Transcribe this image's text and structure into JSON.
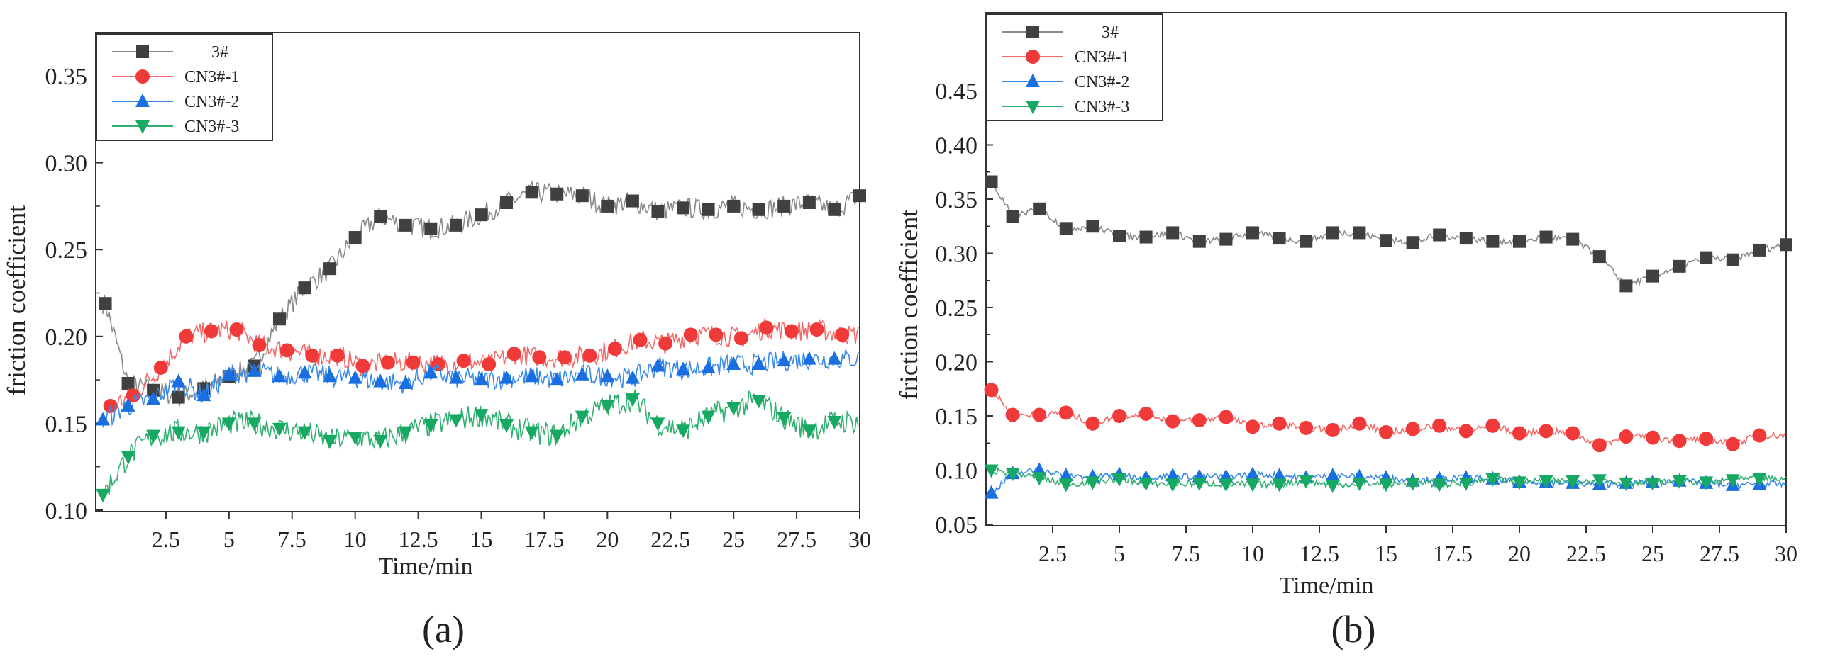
{
  "chart_data": [
    {
      "type": "line",
      "panel_label": "(a)",
      "xlabel": "Time/min",
      "ylabel": "friction coefficient",
      "xlim": [
        0,
        30
      ],
      "ylim": [
        0.1,
        0.36
      ],
      "xticks": [
        "2.5",
        "5",
        "7.5",
        "10",
        "12.5",
        "15",
        "17.5",
        "20",
        "22.5",
        "25",
        "27.5",
        "30"
      ],
      "yticks": [
        "0.10",
        "0.15",
        "0.20",
        "0.25",
        "0.30",
        "0.35"
      ],
      "legend_position": "top-left",
      "series": [
        {
          "name": "3#",
          "color": "#404040",
          "line_color": "#8a8a8a",
          "marker": "square",
          "x": [
            0.1,
            1,
            2,
            3,
            4,
            5,
            6,
            7,
            8,
            9,
            10,
            11,
            12,
            13,
            14,
            15,
            16,
            17,
            18,
            19,
            20,
            21,
            22,
            23,
            24,
            25,
            26,
            27,
            28,
            29,
            30
          ],
          "y": [
            0.219,
            0.173,
            0.169,
            0.165,
            0.17,
            0.177,
            0.183,
            0.21,
            0.228,
            0.239,
            0.257,
            0.269,
            0.264,
            0.262,
            0.264,
            0.27,
            0.277,
            0.283,
            0.282,
            0.281,
            0.275,
            0.278,
            0.272,
            0.274,
            0.273,
            0.275,
            0.273,
            0.275,
            0.277,
            0.273,
            0.281
          ]
        },
        {
          "name": "CN3#-1",
          "color": "#f03a3a",
          "line_color": "#f26a6a",
          "marker": "circle",
          "x": [
            0.3,
            1.2,
            2.3,
            3.3,
            4.3,
            5.3,
            6.2,
            7.3,
            8.3,
            9.3,
            10.3,
            11.3,
            12.3,
            13.3,
            14.3,
            15.3,
            16.3,
            17.3,
            18.3,
            19.3,
            20.3,
            21.3,
            22.3,
            23.3,
            24.3,
            25.3,
            26.3,
            27.3,
            28.3,
            29.3
          ],
          "y": [
            0.16,
            0.166,
            0.182,
            0.2,
            0.203,
            0.204,
            0.195,
            0.192,
            0.189,
            0.189,
            0.183,
            0.185,
            0.185,
            0.184,
            0.186,
            0.184,
            0.19,
            0.188,
            0.188,
            0.189,
            0.193,
            0.198,
            0.196,
            0.201,
            0.201,
            0.199,
            0.205,
            0.203,
            0.204,
            0.201
          ]
        },
        {
          "name": "CN3#-2",
          "color": "#1a6fe0",
          "line_color": "#3a8ae8",
          "marker": "triangle-up",
          "x": [
            0,
            1,
            2,
            3,
            4,
            5,
            6,
            7,
            8,
            9,
            10,
            11,
            12,
            13,
            14,
            15,
            16,
            17,
            18,
            19,
            20,
            21,
            22,
            23,
            24,
            25,
            26,
            27,
            28,
            29
          ],
          "y": [
            0.152,
            0.16,
            0.164,
            0.174,
            0.166,
            0.178,
            0.18,
            0.177,
            0.179,
            0.177,
            0.176,
            0.174,
            0.173,
            0.179,
            0.176,
            0.175,
            0.176,
            0.177,
            0.175,
            0.178,
            0.177,
            0.176,
            0.183,
            0.181,
            0.182,
            0.184,
            0.184,
            0.186,
            0.187,
            0.187
          ]
        },
        {
          "name": "CN3#-3",
          "color": "#17a862",
          "line_color": "#30b070",
          "marker": "triangle-down",
          "x": [
            0,
            1,
            2,
            3,
            4,
            5,
            6,
            7,
            8,
            9,
            10,
            11,
            12,
            13,
            14,
            15,
            16,
            17,
            18,
            19,
            20,
            21,
            22,
            23,
            24,
            25,
            26,
            27,
            28,
            29
          ],
          "y": [
            0.109,
            0.131,
            0.143,
            0.145,
            0.145,
            0.15,
            0.15,
            0.147,
            0.145,
            0.14,
            0.142,
            0.14,
            0.145,
            0.149,
            0.152,
            0.155,
            0.149,
            0.145,
            0.143,
            0.154,
            0.16,
            0.164,
            0.15,
            0.146,
            0.154,
            0.159,
            0.163,
            0.153,
            0.146,
            0.151
          ]
        }
      ]
    },
    {
      "type": "line",
      "panel_label": "(b)",
      "xlabel": "Time/min",
      "ylabel": "friction coefficient",
      "xlim": [
        0,
        30
      ],
      "ylim": [
        0.05,
        0.49
      ],
      "xticks": [
        "2.5",
        "5",
        "7.5",
        "10",
        "12.5",
        "15",
        "17.5",
        "20",
        "22.5",
        "25",
        "27.5",
        "30"
      ],
      "yticks": [
        "0.05",
        "0.10",
        "0.15",
        "0.20",
        "0.25",
        "0.30",
        "0.35",
        "0.40",
        "0.45"
      ],
      "legend_position": "top-left",
      "series": [
        {
          "name": "3#",
          "color": "#404040",
          "line_color": "#8a8a8a",
          "marker": "square",
          "x": [
            0.2,
            1,
            2,
            3,
            4,
            5,
            6,
            7,
            8,
            9,
            10,
            11,
            12,
            13,
            14,
            15,
            16,
            17,
            18,
            19,
            20,
            21,
            22,
            23,
            24,
            25,
            26,
            27,
            28,
            29,
            30
          ],
          "y": [
            0.366,
            0.334,
            0.341,
            0.323,
            0.325,
            0.316,
            0.315,
            0.319,
            0.311,
            0.313,
            0.319,
            0.314,
            0.311,
            0.319,
            0.319,
            0.312,
            0.31,
            0.317,
            0.314,
            0.311,
            0.311,
            0.315,
            0.313,
            0.297,
            0.27,
            0.279,
            0.288,
            0.296,
            0.294,
            0.303,
            0.308
          ]
        },
        {
          "name": "CN3#-1",
          "color": "#f03a3a",
          "line_color": "#f26a6a",
          "marker": "circle",
          "x": [
            0.2,
            1,
            2,
            3,
            4,
            5,
            6,
            7,
            8,
            9,
            10,
            11,
            12,
            13,
            14,
            15,
            16,
            17,
            18,
            19,
            20,
            21,
            22,
            23,
            24,
            25,
            26,
            27,
            28,
            29
          ],
          "y": [
            0.174,
            0.151,
            0.151,
            0.153,
            0.143,
            0.15,
            0.152,
            0.145,
            0.146,
            0.149,
            0.14,
            0.143,
            0.139,
            0.137,
            0.143,
            0.135,
            0.138,
            0.141,
            0.136,
            0.141,
            0.134,
            0.136,
            0.134,
            0.123,
            0.131,
            0.13,
            0.127,
            0.129,
            0.124,
            0.132
          ]
        },
        {
          "name": "CN3#-2",
          "color": "#1a6fe0",
          "line_color": "#3a8ae8",
          "marker": "triangle-up",
          "x": [
            0.2,
            1,
            2,
            3,
            4,
            5,
            6,
            7,
            8,
            9,
            10,
            11,
            12,
            13,
            14,
            15,
            16,
            17,
            18,
            19,
            20,
            21,
            22,
            23,
            24,
            25,
            26,
            27,
            28,
            29
          ],
          "y": [
            0.079,
            0.097,
            0.1,
            0.095,
            0.094,
            0.096,
            0.093,
            0.095,
            0.094,
            0.094,
            0.096,
            0.095,
            0.093,
            0.095,
            0.094,
            0.093,
            0.09,
            0.092,
            0.093,
            0.092,
            0.089,
            0.089,
            0.088,
            0.087,
            0.088,
            0.089,
            0.09,
            0.088,
            0.086,
            0.087
          ]
        },
        {
          "name": "CN3#-3",
          "color": "#17a862",
          "line_color": "#30b070",
          "marker": "triangle-down",
          "x": [
            0.2,
            1,
            2,
            3,
            4,
            5,
            6,
            7,
            8,
            9,
            10,
            11,
            12,
            13,
            14,
            15,
            16,
            17,
            18,
            19,
            20,
            21,
            22,
            23,
            24,
            25,
            26,
            27,
            28,
            29
          ],
          "y": [
            0.1,
            0.097,
            0.093,
            0.087,
            0.089,
            0.092,
            0.088,
            0.087,
            0.088,
            0.087,
            0.087,
            0.087,
            0.09,
            0.086,
            0.088,
            0.087,
            0.088,
            0.087,
            0.088,
            0.092,
            0.089,
            0.09,
            0.09,
            0.091,
            0.088,
            0.088,
            0.09,
            0.089,
            0.091,
            0.092
          ]
        }
      ]
    }
  ]
}
